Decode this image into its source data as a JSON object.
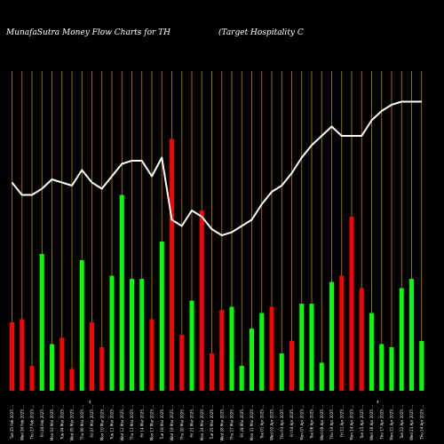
{
  "chart_data": {
    "type": "bar",
    "title": "MunafaSutra  Money Flow  Charts for TH",
    "subtitle": "(Target Hospitality C",
    "xlabel": "",
    "ylabel": "",
    "grid": true,
    "colors": {
      "background": "#000000",
      "up": "#00ff00",
      "down": "#ff0000",
      "grid": "#b8860b",
      "line": "#ffffff",
      "text": "#ffffff"
    },
    "ylim": [
      0,
      100
    ],
    "categories": [
      "Tue 25 Feb 2025",
      "Wed 26 Feb 2025",
      "Thu 27 Feb 2025",
      "Fri 28 Feb 2025",
      "Mon 03 Mar 2025",
      "Tue 04 Mar 2025",
      "Wed 05 Mar 2025",
      "Thu 06 Mar 2025",
      "Fri 07 Mar 2025",
      "Mon 10 Mar 2025",
      "Tue 11 Mar 2025",
      "Wed 12 Mar 2025",
      "Thu 13 Mar 2025",
      "Fri 14 Mar 2025",
      "Mon 17 Mar 2025",
      "Tue 18 Mar 2025",
      "Wed 19 Mar 2025",
      "Thu 20 Mar 2025",
      "Fri 21 Mar 2025",
      "Mon 24 Mar 2025",
      "Tue 25 Mar 2025",
      "Wed 26 Mar 2025",
      "Thu 27 Mar 2025",
      "Fri 28 Mar 2025",
      "Mon 31 Mar 2025",
      "Tue 01 Apr 2025",
      "Wed 02 Apr 2025",
      "Thu 03 Apr 2025",
      "Fri 04 Apr 2025",
      "Mon 07 Apr 2025",
      "Tue 08 Apr 2025",
      "Wed 09 Apr 2025",
      "Thu 10 Apr 2025",
      "Fri 11 Apr 2025",
      "Mon 14 Apr 2025",
      "Tue 15 Apr 2025",
      "Wed 16 Apr 2025",
      "Thu 17 Apr 2025",
      "Mon 21 Apr 2025",
      "Tue 22 Apr 2025",
      "Wed 23 Apr 2025",
      "Thu 24 Apr 2025"
    ],
    "tick_labels": [
      "Tue 25 Feb 2025 ...",
      "Wed 26 Feb 2025 ...",
      "Thu 27 Feb 2025 ...",
      "Fri 28 Feb 2025 ...",
      "Mon 03 Mar 2025 ...",
      "Tue 04 Mar 2025 ...",
      "Wed 05 Mar 2025 ...",
      "Thu 06 Mar 2025 ...",
      "Fri 07 Mar 2025 ...",
      "Mon 10 Mar 2025 ...",
      "Tue 11 Mar 2025 ...",
      "Wed 12 Mar 2025 ...",
      "Thu 13 Mar 2025 ...",
      "Fri 14 Mar 2025 ...",
      "Mon 17 Mar 2025 ...",
      "Tue 18 Mar 2025 ...",
      "Wed 19 Mar 2025 ...",
      "Thu 20 Mar 2025 ...",
      "Fri 21 Mar 2025 ...",
      "Mon 24 Mar 2025 ...",
      "Tue 25 Mar 2025 ...",
      "Wed 26 Mar 2025 ...",
      "Thu 27 Mar 2025 ...",
      "Fri 28 Mar 2025 ...",
      "Mon 31 Mar 2025 ...",
      "Tue 01 Apr 2025 ...",
      "Wed 02 Apr 2025 ...",
      "Thu 03 Apr 2025 ...",
      "Fri 04 Apr 2025 ...",
      "Mon 07 Apr 2025 ...",
      "Tue 08 Apr 2025 ...",
      "Wed 09 Apr 2025 ...",
      "Thu 10 Apr 2025 ...",
      "Fri 11 Apr 2025 ...",
      "Mon 14 Apr 2025 ...",
      "Tue 15 Apr 2025 ...",
      "Wed 16 Apr 2025 ...",
      "Thu 17 Apr 2025 ...",
      "Mon 21 Apr 2025 ...",
      "Tue 22 Apr 2025 ...",
      "Wed 23 Apr 2025 ...",
      "Thu 24 Apr 2025 ..."
    ],
    "dollar_labels": [
      "$",
      "$"
    ],
    "bars": {
      "values": [
        22,
        23,
        8,
        44,
        15,
        17,
        7,
        42,
        22,
        14,
        37,
        63,
        36,
        36,
        23,
        48,
        81,
        18,
        29,
        58,
        12,
        26,
        27,
        8,
        20,
        25,
        27,
        12,
        16,
        28,
        28,
        9,
        35,
        37,
        56,
        33,
        25,
        15,
        14,
        33,
        36,
        16
      ],
      "colors": [
        "down",
        "down",
        "down",
        "up",
        "up",
        "down",
        "down",
        "up",
        "down",
        "down",
        "up",
        "up",
        "up",
        "up",
        "down",
        "up",
        "down",
        "down",
        "up",
        "down",
        "down",
        "down",
        "up",
        "up",
        "up",
        "up",
        "down",
        "up",
        "down",
        "up",
        "up",
        "up",
        "up",
        "down",
        "down",
        "down",
        "up",
        "up",
        "up",
        "up",
        "up",
        "up"
      ]
    },
    "series": [
      {
        "type": "line",
        "values": [
          67,
          63,
          63,
          65,
          68,
          67,
          66,
          71,
          67,
          65,
          69,
          73,
          74,
          74,
          69,
          75,
          55,
          53,
          58,
          56,
          52,
          50,
          51,
          53,
          55,
          60,
          64,
          66,
          70,
          75,
          79,
          82,
          85,
          82,
          82,
          82,
          87,
          90,
          92,
          93,
          93,
          93
        ]
      }
    ]
  }
}
